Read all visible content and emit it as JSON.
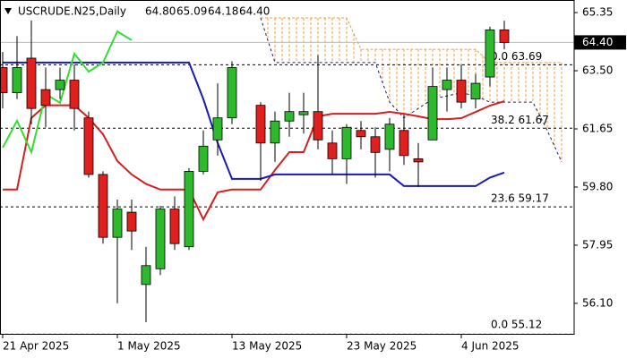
{
  "chart_data": {
    "type": "candlestick",
    "symbol": "USCRUDE.N25,Daily",
    "ohlc_labels": [
      "64.80",
      "65.09",
      "64.18",
      "64.40"
    ],
    "price_label": "64.40",
    "price": 64.4,
    "categories": [
      "21 Apr 2025",
      null,
      null,
      null,
      null,
      null,
      null,
      null,
      "1 May 2025",
      null,
      null,
      null,
      null,
      null,
      null,
      null,
      "13 May 2025",
      null,
      null,
      null,
      null,
      null,
      null,
      null,
      "23 May 2025",
      null,
      null,
      null,
      null,
      null,
      null,
      null,
      "4 Jun 2025",
      null,
      null,
      null,
      null,
      null,
      null,
      null
    ],
    "open": [
      63.6,
      62.8,
      63.9,
      62.9,
      62.9,
      63.2,
      62.0,
      60.2,
      58.2,
      59.0,
      56.7,
      57.2,
      59.1,
      57.9,
      60.3,
      61.3,
      62.0,
      null,
      62.4,
      61.2,
      61.9,
      62.1,
      62.2,
      61.2,
      60.7,
      61.6,
      61.4,
      61.0,
      61.6,
      60.7,
      61.3,
      62.9,
      63.2,
      62.6,
      63.3,
      64.8,
      null,
      null,
      null,
      null
    ],
    "high": [
      64.1,
      64.6,
      65.1,
      63.6,
      63.6,
      63.7,
      62.2,
      60.3,
      59.4,
      59.4,
      57.9,
      59.2,
      59.5,
      60.4,
      61.6,
      63.1,
      63.8,
      null,
      62.5,
      62.2,
      62.8,
      62.8,
      64.0,
      61.6,
      61.8,
      61.9,
      61.7,
      62.0,
      62.1,
      61.2,
      63.6,
      63.6,
      63.7,
      63.4,
      64.9,
      65.09,
      null,
      null,
      null,
      null
    ],
    "low": [
      62.3,
      62.6,
      61.8,
      61.7,
      62.6,
      61.6,
      60.1,
      58.0,
      56.1,
      57.8,
      55.5,
      57.0,
      57.8,
      57.8,
      60.2,
      60.8,
      61.8,
      null,
      60.0,
      60.6,
      61.4,
      61.5,
      61.0,
      60.2,
      59.9,
      61.0,
      60.1,
      60.3,
      60.5,
      59.8,
      61.3,
      62.2,
      62.3,
      62.3,
      63.0,
      64.18,
      null,
      null,
      null,
      null
    ],
    "close": [
      62.8,
      63.6,
      62.3,
      62.4,
      63.2,
      62.3,
      60.2,
      58.2,
      59.1,
      58.4,
      57.3,
      59.1,
      58.0,
      60.3,
      61.1,
      62.0,
      63.6,
      null,
      61.2,
      61.9,
      62.2,
      62.2,
      61.3,
      60.7,
      61.7,
      61.4,
      60.9,
      61.8,
      60.8,
      60.6,
      63.0,
      63.2,
      62.5,
      63.1,
      64.8,
      64.4,
      null,
      null,
      null,
      null
    ],
    "up_color": "#2db82d",
    "down_color": "#e01f1f",
    "lines": [
      {
        "color": "#d42020",
        "values": [
          59.72,
          59.72,
          62.0,
          62.4,
          62.4,
          62.4,
          62.0,
          61.48,
          60.63,
          60.2,
          59.9,
          59.72,
          59.72,
          59.72,
          58.77,
          59.63,
          59.72,
          59.72,
          59.72,
          60.34,
          60.91,
          60.91,
          62.05,
          62.13,
          62.13,
          62.13,
          62.13,
          62.19,
          62.13,
          62.05,
          61.96,
          61.96,
          61.99,
          62.19,
          62.39,
          62.53,
          null,
          null,
          null,
          null
        ]
      },
      {
        "color": "#1a1ab0",
        "values": [
          63.76,
          63.76,
          63.76,
          63.76,
          63.76,
          63.76,
          63.76,
          63.76,
          63.76,
          63.76,
          63.76,
          63.76,
          63.76,
          63.76,
          62.6,
          61.2,
          60.06,
          60.06,
          60.06,
          60.2,
          60.2,
          60.2,
          60.2,
          60.2,
          60.2,
          60.2,
          60.2,
          60.2,
          59.83,
          59.83,
          59.83,
          59.83,
          59.83,
          59.83,
          60.1,
          60.26,
          null,
          null,
          null,
          null
        ]
      },
      {
        "color": "#33dd33",
        "values": [
          61.05,
          61.91,
          60.91,
          62.76,
          62.48,
          64.04,
          63.47,
          63.76,
          64.75,
          64.47,
          null,
          null,
          null,
          null,
          null,
          null,
          null,
          null,
          null,
          null,
          null,
          null,
          null,
          null,
          null,
          null,
          null,
          null,
          null,
          null,
          null,
          null,
          null,
          null,
          null,
          null,
          null,
          null,
          null,
          null
        ]
      }
    ],
    "cloud": {
      "color": "#f0a040",
      "edge_color": "#1a1a6a",
      "upper": [
        null,
        null,
        null,
        null,
        null,
        null,
        null,
        null,
        null,
        null,
        null,
        null,
        null,
        null,
        null,
        null,
        null,
        null,
        65.18,
        65.18,
        65.18,
        65.18,
        65.18,
        65.18,
        65.18,
        64.18,
        64.18,
        64.18,
        64.18,
        64.18,
        64.18,
        64.18,
        64.18,
        64.18,
        63.76,
        63.76,
        63.76,
        63.76,
        63.76,
        63.76
      ],
      "lower": [
        null,
        null,
        null,
        null,
        null,
        null,
        null,
        null,
        null,
        null,
        null,
        null,
        null,
        null,
        null,
        null,
        null,
        null,
        65.18,
        63.76,
        63.76,
        63.76,
        63.76,
        63.76,
        63.76,
        63.76,
        63.76,
        62.5,
        62.0,
        62.3,
        62.6,
        62.7,
        62.8,
        62.7,
        62.5,
        62.5,
        62.5,
        62.5,
        61.6,
        60.6
      ]
    },
    "fibo": [
      {
        "label": "0.0 63.69",
        "value": 63.69
      },
      {
        "label": "38.2 61.67",
        "value": 61.67
      },
      {
        "label": "23.6 59.17",
        "value": 59.17
      },
      {
        "label": "0.0 55.12",
        "value": 55.12
      }
    ],
    "ylim": [
      55.13,
      65.75
    ],
    "yticks": [
      65.35,
      {
        "value": 63.5,
        "label": "63.50"
      },
      61.65,
      {
        "value": 59.8,
        "label": "59.80"
      },
      57.95,
      {
        "value": 56.1,
        "label": "56.10"
      }
    ]
  }
}
